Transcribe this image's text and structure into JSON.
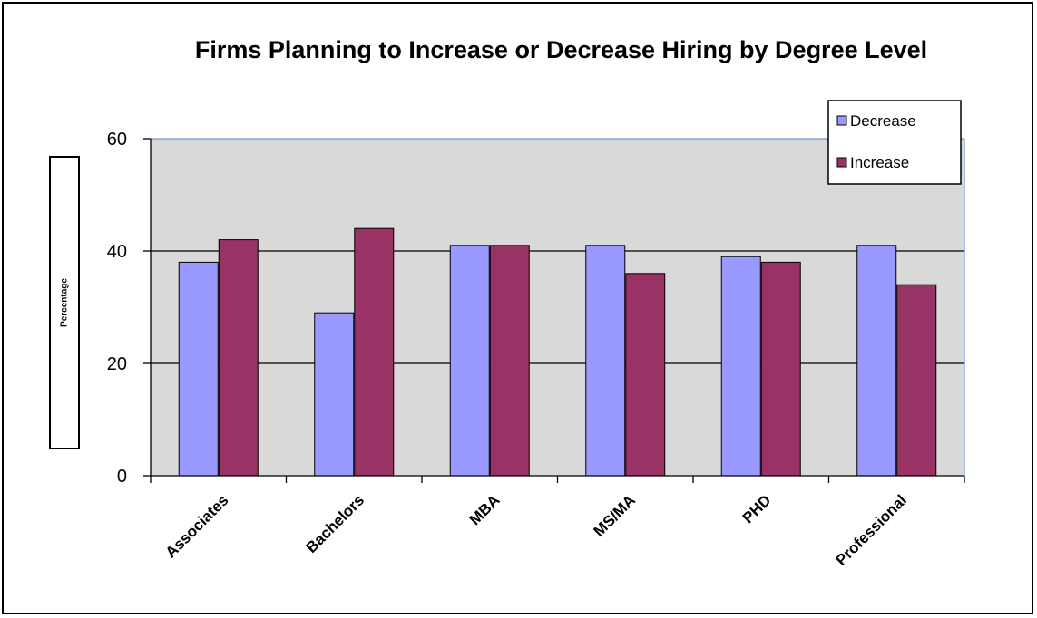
{
  "chart_data": {
    "type": "bar",
    "title": "Firms Planning to Increase or Decrease Hiring by Degree Level",
    "xlabel": "",
    "ylabel": "Percentage",
    "categories": [
      "Associates",
      "Bachelors",
      "MBA",
      "MS/MA",
      "PHD",
      "Professional"
    ],
    "series": [
      {
        "name": "Decrease",
        "values": [
          38,
          29,
          41,
          41,
          39,
          41
        ],
        "color": "#9999FF"
      },
      {
        "name": "Increase",
        "values": [
          42,
          44,
          41,
          36,
          38,
          34
        ],
        "color": "#993366"
      }
    ],
    "ylim": [
      0,
      60
    ],
    "yticks": [
      "0",
      "20",
      "40",
      "60"
    ],
    "grid": true,
    "plot_background": "#D9D9D9",
    "legend_position": "top-right"
  }
}
